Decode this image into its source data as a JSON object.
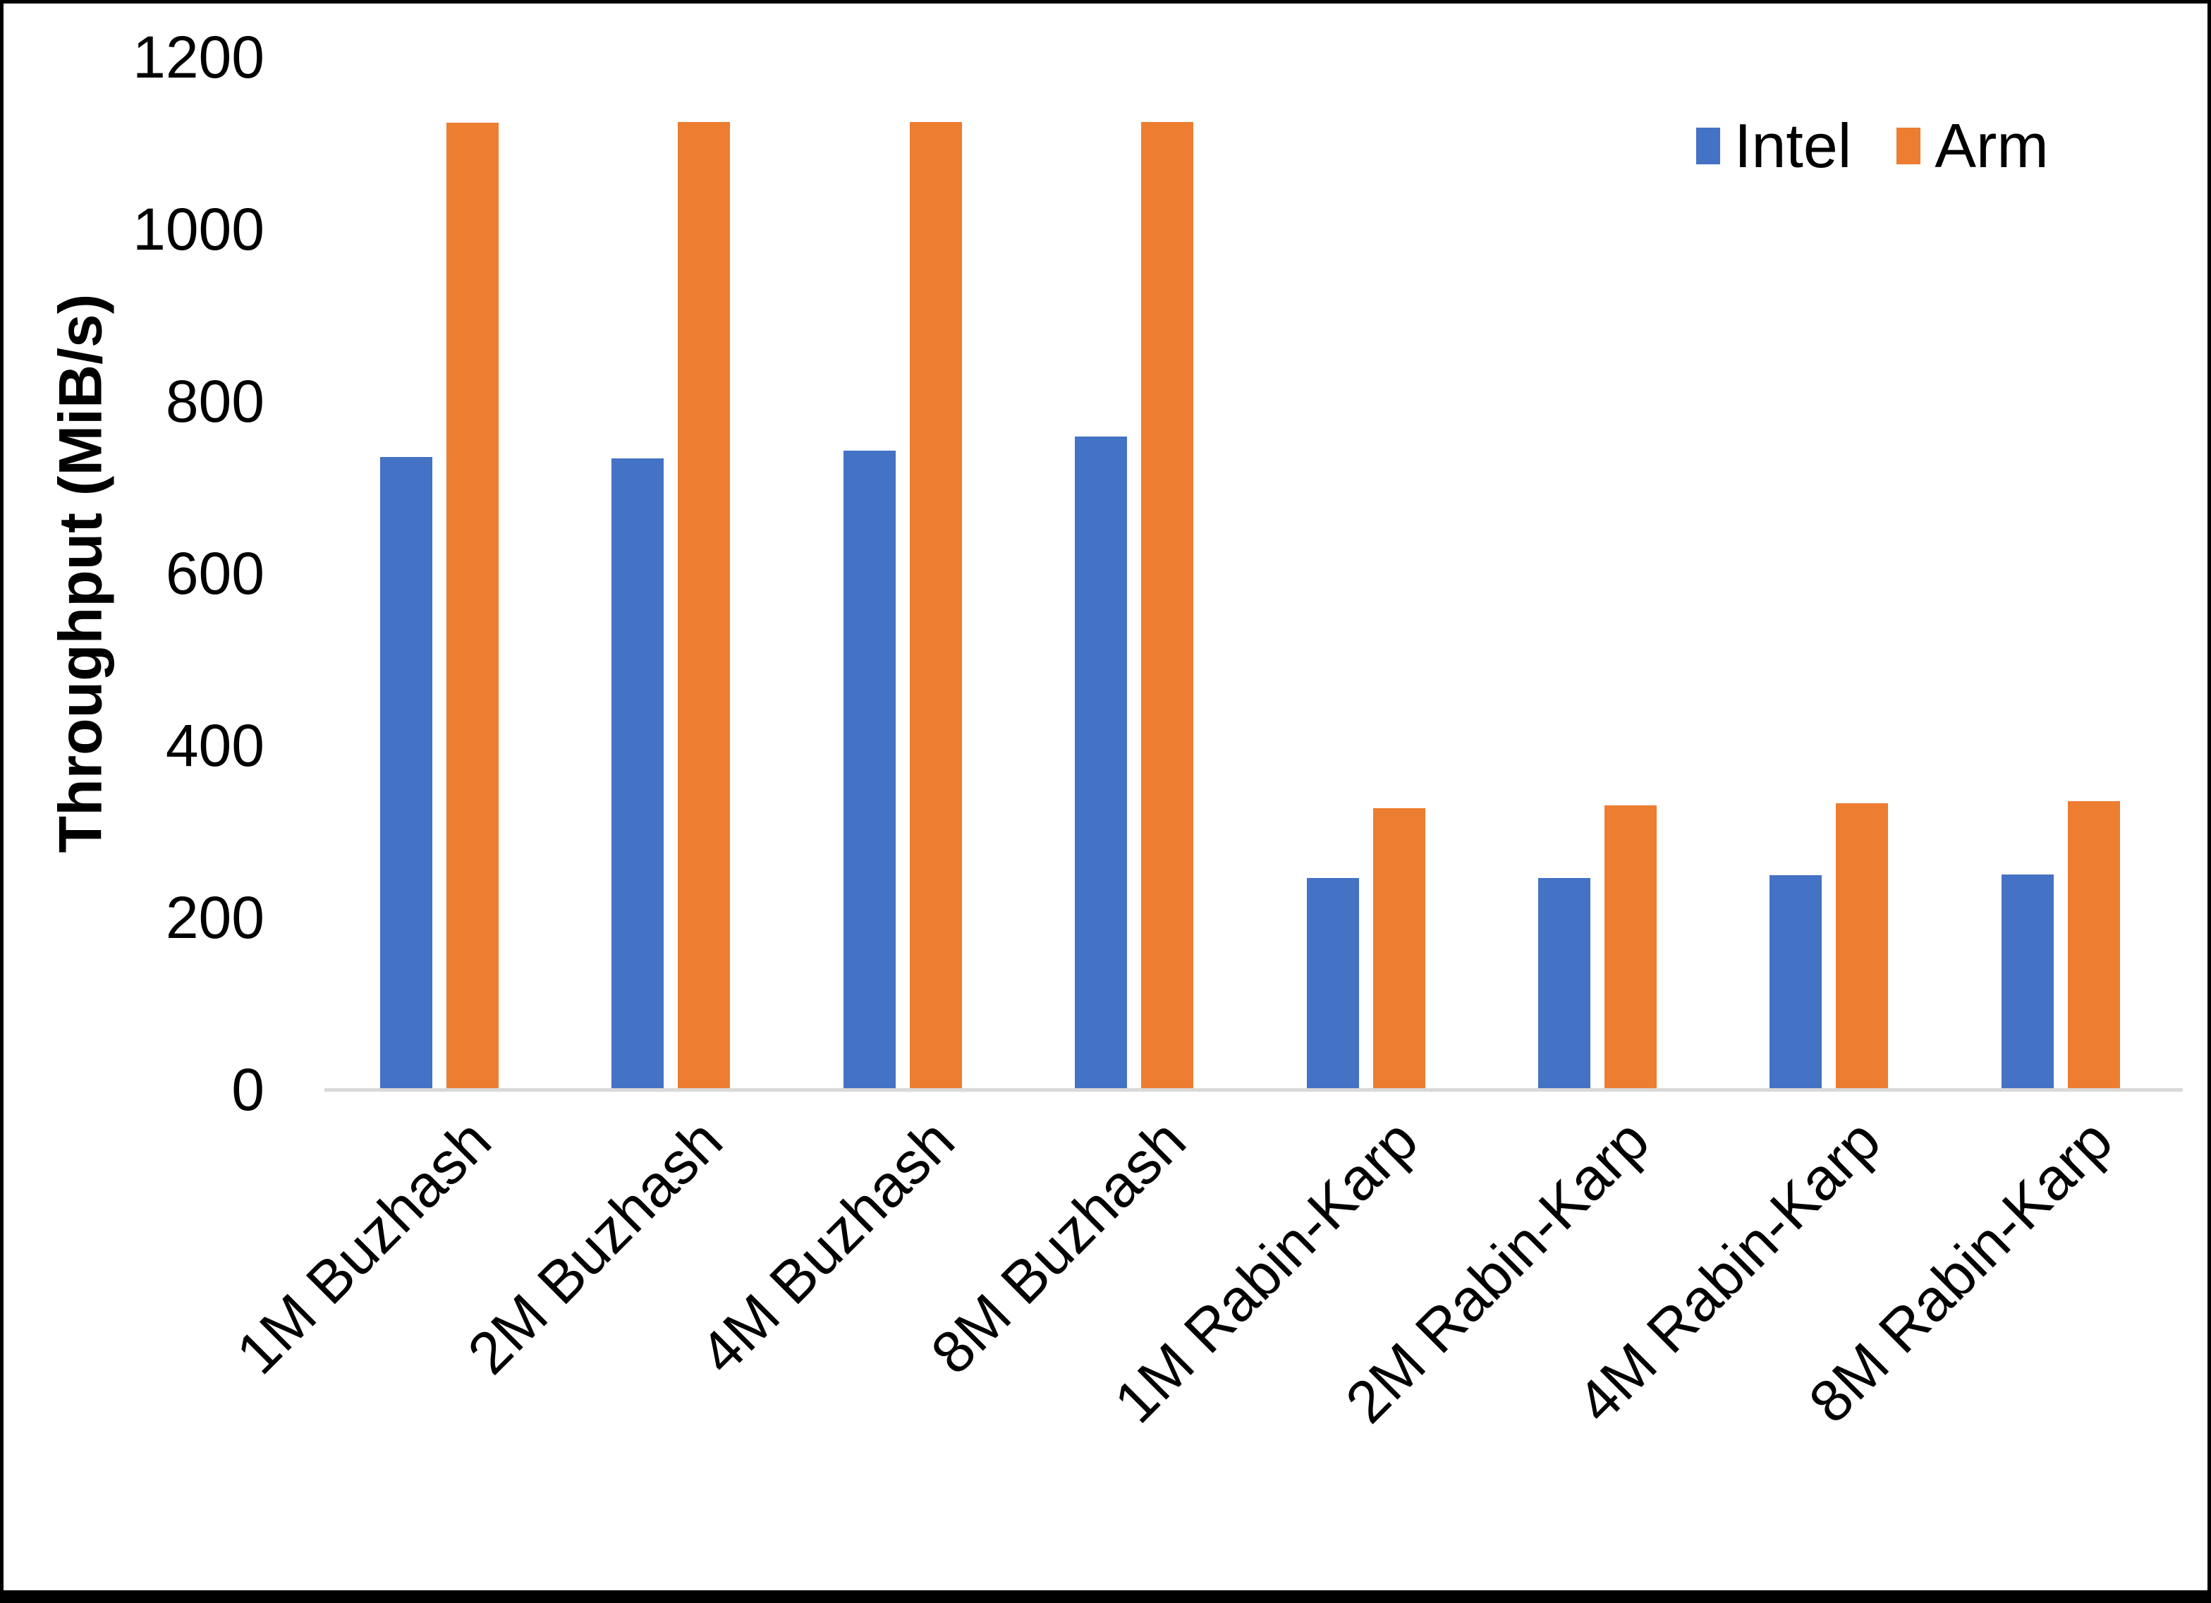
{
  "chart_data": {
    "type": "bar",
    "title": "",
    "xlabel": "",
    "ylabel": "Throughput (MiB/s)",
    "ylim": [
      0,
      1200
    ],
    "yticks": [
      "0",
      "200",
      "400",
      "600",
      "800",
      "1000",
      "1200"
    ],
    "grid": false,
    "legend_position": "top-right",
    "categories": [
      "1M Buzhash",
      "2M Buzhash",
      "4M Buzhash",
      "8M Buzhash",
      "1M Rabin-Karp",
      "2M Rabin-Karp",
      "4M Rabin-Karp",
      "8M Rabin-Karp"
    ],
    "series": [
      {
        "name": "Intel",
        "color": "#4472C4",
        "values": [
          735,
          734,
          743,
          759,
          246,
          246,
          249,
          250
        ]
      },
      {
        "name": "Arm",
        "color": "#ED7D31",
        "values": [
          1124,
          1125,
          1125,
          1125,
          327,
          330,
          333,
          335
        ]
      }
    ],
    "colors": {
      "axis_line": "#d9d9d9",
      "text": "#000000",
      "background": "#ffffff"
    }
  }
}
